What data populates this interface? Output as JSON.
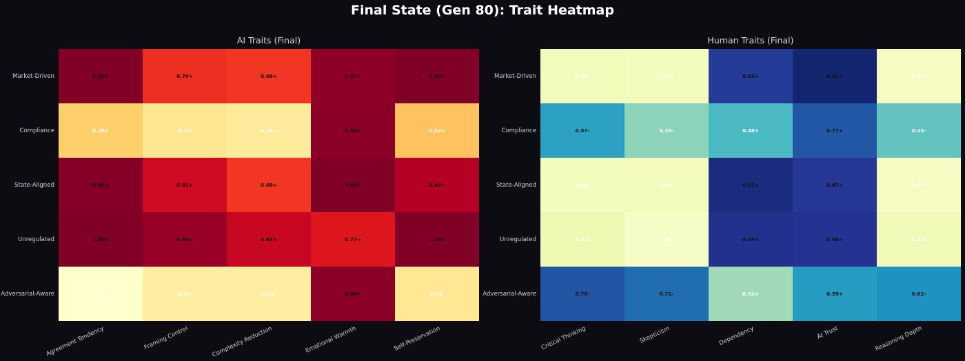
{
  "suptitle": "Final State (Gen 80): Trait Heatmap",
  "chart_data": [
    {
      "type": "heatmap",
      "title": "AI Traits (Final)",
      "colormap": "YlOrRd",
      "rows": [
        "Market-Driven",
        "Compliance",
        "State-Aligned",
        "Unregulated",
        "Adversarial-Aware"
      ],
      "columns": [
        "Agreement Tendency",
        "Framing Control",
        "Complexity Reduction",
        "Emotional Warmth",
        "Self-Preservation"
      ],
      "values": [
        [
          1.0,
          0.7,
          0.68,
          0.97,
          1.0
        ],
        [
          0.28,
          0.17,
          0.14,
          0.98,
          0.32
        ],
        [
          0.99,
          0.82,
          0.68,
          1.0,
          0.89
        ],
        [
          1.0,
          0.95,
          0.84,
          0.77,
          1.0
        ],
        [
          0.0,
          0.12,
          0.12,
          0.98,
          0.16
        ]
      ],
      "labels": [
        [
          "1.00+",
          "0.70+",
          "0.68+",
          "0.97+",
          "1.00+"
        ],
        [
          "0.28+",
          "0.17-",
          "0.14+",
          "0.98+",
          "0.32+"
        ],
        [
          "0.99+",
          "0.82+",
          "0.68+",
          "1.00+",
          "0.89+"
        ],
        [
          "1.00+",
          "0.95+",
          "0.84+",
          "0.77+",
          "1.00-"
        ],
        [
          "0.00-",
          "0.12-",
          "0.12-",
          "0.98+",
          "0.16-"
        ]
      ]
    },
    {
      "type": "heatmap",
      "title": "Human Traits (Final)",
      "colormap": "YlGnBu",
      "rows": [
        "Market-Driven",
        "Compliance",
        "State-Aligned",
        "Unregulated",
        "Adversarial-Aware"
      ],
      "columns": [
        "Critical Thinking",
        "Skepticism",
        "Dependency",
        "AI Trust",
        "Reasoning Depth"
      ],
      "values": [
        [
          0.09,
          0.08,
          0.85,
          0.95,
          0.07
        ],
        [
          0.57,
          0.35,
          0.48,
          0.77,
          0.43
        ],
        [
          0.08,
          0.09,
          0.92,
          0.87,
          0.07
        ],
        [
          0.12,
          0.06,
          0.89,
          0.88,
          0.1
        ],
        [
          0.78,
          0.71,
          0.32,
          0.59,
          0.62
        ]
      ],
      "labels": [
        [
          "0.09-",
          "0.08-",
          "0.85+",
          "0.95+",
          "0.07-"
        ],
        [
          "0.57-",
          "0.35-",
          "0.48+",
          "0.77+",
          "0.43-"
        ],
        [
          "0.08-",
          "0.09-",
          "0.92+",
          "0.87+",
          "0.07-"
        ],
        [
          "0.12-",
          "0.06-",
          "0.89+",
          "0.88+",
          "0.10-"
        ],
        [
          "0.78-",
          "0.71-",
          "0.32+",
          "0.59+",
          "0.62-"
        ]
      ]
    }
  ]
}
